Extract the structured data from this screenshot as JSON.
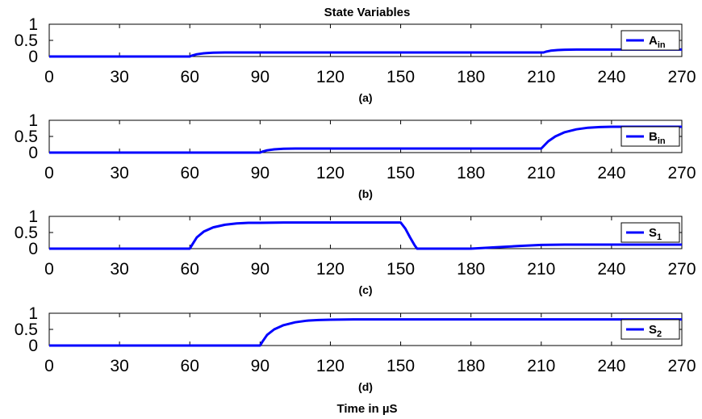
{
  "title": "State Variables",
  "xlabel": "Time in µS",
  "line_color": "#0000ff",
  "chart_data": [
    {
      "type": "line",
      "panel_label": "(a)",
      "xlim": [
        0,
        270
      ],
      "ylim": [
        0,
        1
      ],
      "x_ticks": [
        0,
        30,
        60,
        90,
        120,
        150,
        180,
        210,
        240,
        270
      ],
      "x_tick_labels": [
        "0",
        "30",
        "60",
        "90",
        "120",
        "150",
        "180",
        "210",
        "240",
        "270"
      ],
      "y_ticks": [
        0,
        0.5,
        1
      ],
      "y_tick_labels": [
        "0",
        "0.5",
        "1"
      ],
      "legend": {
        "main": "A",
        "sub": "in",
        "position": "right"
      },
      "series": [
        {
          "name": "Ain",
          "x": [
            0,
            60,
            61,
            63,
            66,
            70,
            75,
            80,
            211,
            212,
            214,
            217,
            220,
            225,
            270
          ],
          "y": [
            0,
            0,
            0.03,
            0.07,
            0.1,
            0.12,
            0.125,
            0.125,
            0.125,
            0.15,
            0.18,
            0.2,
            0.21,
            0.215,
            0.215
          ]
        }
      ]
    },
    {
      "type": "line",
      "panel_label": "(b)",
      "xlim": [
        0,
        270
      ],
      "ylim": [
        0,
        1
      ],
      "x_ticks": [
        0,
        30,
        60,
        90,
        120,
        150,
        180,
        210,
        240,
        270
      ],
      "x_tick_labels": [
        "0",
        "30",
        "60",
        "90",
        "120",
        "150",
        "180",
        "210",
        "240",
        "270"
      ],
      "y_ticks": [
        0,
        0.5,
        1
      ],
      "y_tick_labels": [
        "0",
        "0.5",
        "1"
      ],
      "legend": {
        "main": "B",
        "sub": "in",
        "position": "right"
      },
      "series": [
        {
          "name": "Bin",
          "x": [
            0,
            90,
            91,
            93,
            96,
            100,
            105,
            110,
            210,
            211,
            213,
            216,
            220,
            225,
            230,
            235,
            240,
            250,
            270
          ],
          "y": [
            0,
            0,
            0.03,
            0.07,
            0.1,
            0.12,
            0.125,
            0.125,
            0.125,
            0.2,
            0.35,
            0.5,
            0.63,
            0.72,
            0.77,
            0.79,
            0.8,
            0.8,
            0.8
          ]
        }
      ]
    },
    {
      "type": "line",
      "panel_label": "(c)",
      "xlim": [
        0,
        270
      ],
      "ylim": [
        0,
        1
      ],
      "x_ticks": [
        0,
        30,
        60,
        90,
        120,
        150,
        180,
        210,
        240,
        270
      ],
      "x_tick_labels": [
        "0",
        "30",
        "60",
        "90",
        "120",
        "150",
        "180",
        "210",
        "240",
        "270"
      ],
      "y_ticks": [
        0,
        0.5,
        1
      ],
      "y_tick_labels": [
        "0",
        "0.5",
        "1"
      ],
      "legend": {
        "main": "S",
        "sub": "1",
        "position": "right"
      },
      "series": [
        {
          "name": "S1",
          "x": [
            0,
            60,
            61,
            63,
            66,
            70,
            75,
            80,
            85,
            90,
            100,
            150,
            152,
            154,
            156,
            157,
            180,
            190,
            200,
            210,
            220,
            270
          ],
          "y": [
            0,
            0,
            0.12,
            0.35,
            0.53,
            0.66,
            0.74,
            0.78,
            0.8,
            0.8,
            0.81,
            0.81,
            0.62,
            0.35,
            0.1,
            0,
            0,
            0.04,
            0.08,
            0.115,
            0.125,
            0.125
          ]
        }
      ]
    },
    {
      "type": "line",
      "panel_label": "(d)",
      "xlim": [
        0,
        270
      ],
      "ylim": [
        0,
        1
      ],
      "x_ticks": [
        0,
        30,
        60,
        90,
        120,
        150,
        180,
        210,
        240,
        270
      ],
      "x_tick_labels": [
        "0",
        "30",
        "60",
        "90",
        "120",
        "150",
        "180",
        "210",
        "240",
        "270"
      ],
      "y_ticks": [
        0,
        0.5,
        1
      ],
      "y_tick_labels": [
        "0",
        "0.5",
        "1"
      ],
      "legend": {
        "main": "S",
        "sub": "2",
        "position": "right"
      },
      "series": [
        {
          "name": "S2",
          "x": [
            0,
            90,
            91,
            93,
            96,
            100,
            105,
            110,
            115,
            120,
            130,
            270
          ],
          "y": [
            0,
            0,
            0.12,
            0.33,
            0.5,
            0.63,
            0.72,
            0.77,
            0.79,
            0.8,
            0.81,
            0.81
          ]
        }
      ]
    }
  ]
}
